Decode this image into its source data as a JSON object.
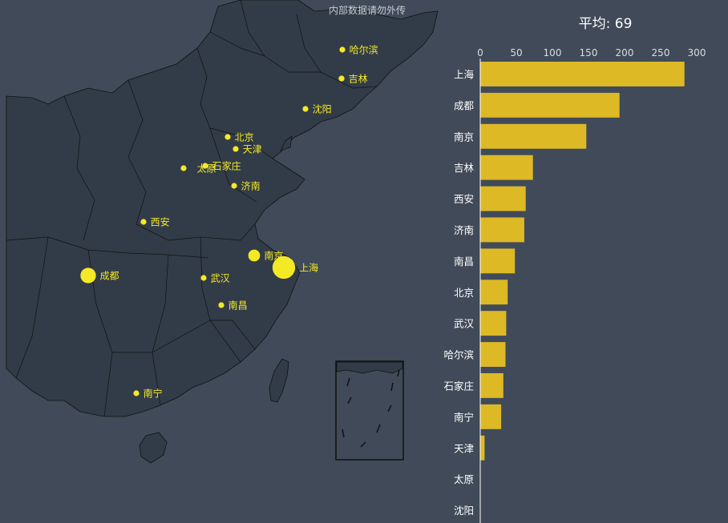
{
  "watermark": "内部数据请勿外传",
  "title": "平均: 69",
  "colors": {
    "background": "#404a59",
    "land": "#323c48",
    "border": "#111111",
    "point": "#f4e925",
    "bar": "#ddb926",
    "axis_text": "#dddddd",
    "label_text": "#ffffff"
  },
  "chart_data": [
    {
      "type": "scatter",
      "kind": "geo-map",
      "points": [
        {
          "name": "上海",
          "value": 283
        },
        {
          "name": "成都",
          "value": 193
        },
        {
          "name": "南京",
          "value": 147
        },
        {
          "name": "吉林",
          "value": 73
        },
        {
          "name": "西安",
          "value": 63
        },
        {
          "name": "济南",
          "value": 61
        },
        {
          "name": "南昌",
          "value": 48
        },
        {
          "name": "北京",
          "value": 38
        },
        {
          "name": "武汉",
          "value": 36
        },
        {
          "name": "哈尔滨",
          "value": 35
        },
        {
          "name": "石家庄",
          "value": 32
        },
        {
          "name": "南宁",
          "value": 29
        },
        {
          "name": "天津",
          "value": 6
        },
        {
          "name": "太原",
          "value": 0
        },
        {
          "name": "沈阳",
          "value": 0
        }
      ]
    },
    {
      "type": "bar",
      "orientation": "horizontal",
      "categories": [
        "上海",
        "成都",
        "南京",
        "吉林",
        "西安",
        "济南",
        "南昌",
        "北京",
        "武汉",
        "哈尔滨",
        "石家庄",
        "南宁",
        "天津",
        "太原",
        "沈阳"
      ],
      "values": [
        283,
        193,
        147,
        73,
        63,
        61,
        48,
        38,
        36,
        35,
        32,
        29,
        6,
        0,
        0
      ],
      "xlim": [
        0,
        300
      ],
      "xticks": [
        0,
        50,
        100,
        150,
        200,
        250,
        300
      ],
      "axis_position": "top",
      "grid": false
    }
  ]
}
